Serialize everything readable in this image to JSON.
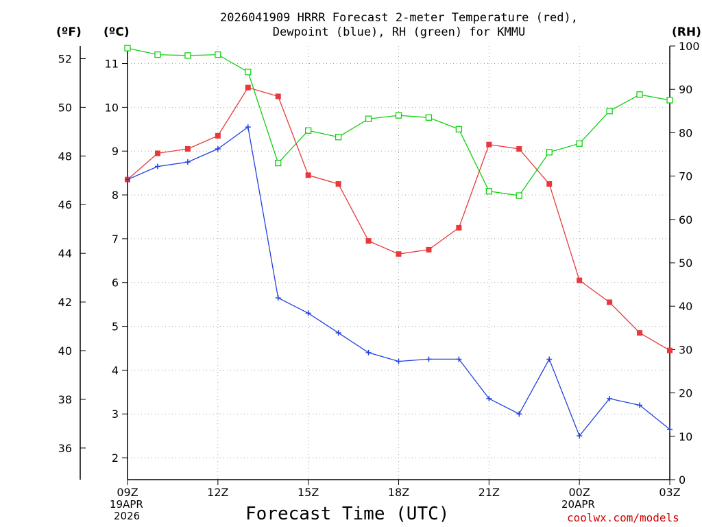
{
  "header": {
    "title_line1": "2026041909 HRRR Forecast 2-meter Temperature (red),",
    "title_line2": "Dewpoint (blue), RH (green) for KMMU",
    "unit_f": "(ºF)",
    "unit_c": "(ºC)",
    "unit_rh": "(RH)"
  },
  "footer": {
    "xlabel": "Forecast Time (UTC)",
    "credit": "coolwx.com/models",
    "date_start": [
      "19APR",
      "2026"
    ],
    "date_next": "20APR"
  },
  "colors": {
    "temperature": "#e8383b",
    "dewpoint": "#2040e0",
    "rh": "#10d010",
    "grid": "#a0a0a0"
  },
  "chart_data": {
    "type": "line",
    "title": "2026041909 HRRR Forecast 2-meter Temperature (red), Dewpoint (blue), RH (green) for KMMU",
    "xlabel": "Forecast Time (UTC)",
    "x_hours": [
      0,
      1,
      2,
      3,
      4,
      5,
      6,
      7,
      8,
      9,
      10,
      11,
      12,
      13,
      14,
      15,
      16,
      17,
      18
    ],
    "x_ticks": [
      {
        "hour": 0,
        "label": "09Z"
      },
      {
        "hour": 3,
        "label": "12Z"
      },
      {
        "hour": 6,
        "label": "15Z"
      },
      {
        "hour": 9,
        "label": "18Z"
      },
      {
        "hour": 12,
        "label": "21Z"
      },
      {
        "hour": 15,
        "label": "00Z"
      },
      {
        "hour": 18,
        "label": "03Z"
      }
    ],
    "left_axis_c": {
      "label": "(ºC)",
      "ylim": [
        1.5,
        11.4
      ],
      "ticks": [
        2,
        3,
        4,
        5,
        6,
        7,
        8,
        9,
        10,
        11
      ]
    },
    "left_axis_f": {
      "label": "(ºF)",
      "ticks": [
        36,
        38,
        40,
        42,
        44,
        46,
        48,
        50,
        52
      ]
    },
    "right_axis_rh": {
      "label": "(RH)",
      "ylim": [
        0,
        100
      ],
      "ticks": [
        0,
        10,
        20,
        30,
        40,
        50,
        60,
        70,
        80,
        90,
        100
      ]
    },
    "series": [
      {
        "name": "Temperature",
        "axis": "C",
        "color": "#e8383b",
        "marker": "filled-square",
        "values": [
          8.35,
          8.95,
          9.05,
          9.35,
          10.45,
          10.25,
          8.45,
          8.25,
          6.95,
          6.65,
          6.75,
          7.25,
          9.15,
          9.05,
          8.25,
          6.05,
          5.55,
          4.85,
          4.45
        ]
      },
      {
        "name": "Dewpoint",
        "axis": "C",
        "color": "#2040e0",
        "marker": "plus",
        "values": [
          8.35,
          8.65,
          8.75,
          9.05,
          9.55,
          5.65,
          5.3,
          4.85,
          4.4,
          4.2,
          4.25,
          4.25,
          3.35,
          3.0,
          4.25,
          2.5,
          3.35,
          3.2,
          2.65
        ]
      },
      {
        "name": "RH",
        "axis": "RH",
        "color": "#10d010",
        "marker": "open-square",
        "values": [
          99.5,
          98,
          97.8,
          98,
          94,
          73,
          80.5,
          79,
          83.2,
          84,
          83.5,
          80.8,
          66.5,
          65.5,
          75.5,
          77.5,
          85,
          88.8,
          87.5
        ]
      }
    ]
  }
}
